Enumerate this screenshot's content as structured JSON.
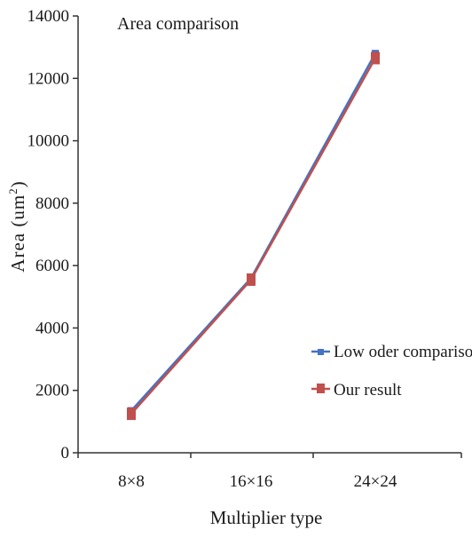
{
  "chart_data": {
    "type": "line",
    "title": "Area comparison",
    "xlabel": "Multiplier type",
    "ylabel": "Area (um²)",
    "ylabel_main": "Area (um",
    "ylabel_sup": "2",
    "ylabel_close": ")",
    "categories": [
      "8×8",
      "16×16",
      "24×24"
    ],
    "ylim": [
      0,
      14000
    ],
    "yticks": [
      0,
      2000,
      4000,
      6000,
      8000,
      10000,
      12000,
      14000
    ],
    "grid": false,
    "legend_position": "right",
    "series": [
      {
        "name": "Low oder comparison",
        "values": [
          1350,
          5600,
          12800
        ],
        "color": "#4472c4",
        "marker": "plus"
      },
      {
        "name": "Our result",
        "values": [
          1250,
          5550,
          12650
        ],
        "color": "#c0504d",
        "marker": "square"
      }
    ]
  }
}
